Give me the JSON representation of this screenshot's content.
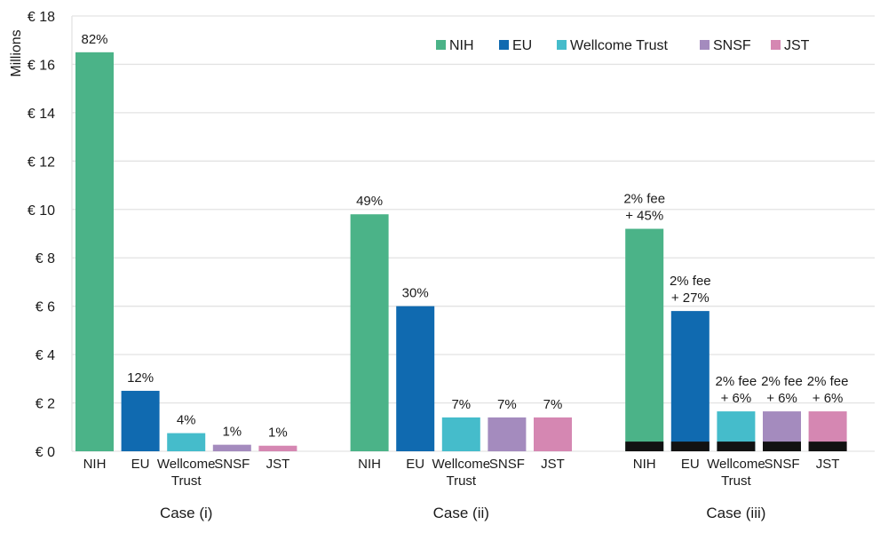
{
  "chart_data": {
    "type": "bar",
    "title": "",
    "xlabel": "",
    "ylabel": "Millions",
    "ylim": [
      0,
      18
    ],
    "yticks": [
      0,
      2,
      4,
      6,
      8,
      10,
      12,
      14,
      16,
      18
    ],
    "ytick_prefix": "€ ",
    "grid": true,
    "legend_position": "top-right",
    "legend": [
      {
        "name": "NIH",
        "color": "#4bb388"
      },
      {
        "name": "EU",
        "color": "#106ab0"
      },
      {
        "name": "Wellcome Trust",
        "color": "#45bccb"
      },
      {
        "name": "SNSF",
        "color": "#a48bbe"
      },
      {
        "name": "JST",
        "color": "#d587b2"
      }
    ],
    "fee_color": "#121212",
    "groups": [
      {
        "label": "Case (i)",
        "bars": [
          {
            "category": [
              "NIH"
            ],
            "funder": "NIH",
            "value": 16.5,
            "fee": 0,
            "label": [
              "82%"
            ]
          },
          {
            "category": [
              "EU"
            ],
            "funder": "EU",
            "value": 2.5,
            "fee": 0,
            "label": [
              "12%"
            ]
          },
          {
            "category": [
              "Wellcome",
              "Trust"
            ],
            "funder": "Wellcome Trust",
            "value": 0.75,
            "fee": 0,
            "label": [
              "4%"
            ]
          },
          {
            "category": [
              "SNSF"
            ],
            "funder": "SNSF",
            "value": 0.27,
            "fee": 0,
            "label": [
              "1%"
            ]
          },
          {
            "category": [
              "JST"
            ],
            "funder": "JST",
            "value": 0.23,
            "fee": 0,
            "label": [
              "1%"
            ]
          }
        ]
      },
      {
        "label": "Case (ii)",
        "bars": [
          {
            "category": [
              "NIH"
            ],
            "funder": "NIH",
            "value": 9.8,
            "fee": 0,
            "label": [
              "49%"
            ]
          },
          {
            "category": [
              "EU"
            ],
            "funder": "EU",
            "value": 6.0,
            "fee": 0,
            "label": [
              "30%"
            ]
          },
          {
            "category": [
              "Wellcome",
              "Trust"
            ],
            "funder": "Wellcome Trust",
            "value": 1.4,
            "fee": 0,
            "label": [
              "7%"
            ]
          },
          {
            "category": [
              "SNSF"
            ],
            "funder": "SNSF",
            "value": 1.4,
            "fee": 0,
            "label": [
              "7%"
            ]
          },
          {
            "category": [
              "JST"
            ],
            "funder": "JST",
            "value": 1.4,
            "fee": 0,
            "label": [
              "7%"
            ]
          }
        ]
      },
      {
        "label": "Case (iii)",
        "bars": [
          {
            "category": [
              "NIH"
            ],
            "funder": "NIH",
            "value": 9.2,
            "fee": 0.4,
            "label": [
              "2% fee",
              "+ 45%"
            ]
          },
          {
            "category": [
              "EU"
            ],
            "funder": "EU",
            "value": 5.8,
            "fee": 0.4,
            "label": [
              "2% fee",
              "+ 27%"
            ]
          },
          {
            "category": [
              "Wellcome",
              "Trust"
            ],
            "funder": "Wellcome Trust",
            "value": 1.65,
            "fee": 0.4,
            "label": [
              "2% fee",
              "+ 6%"
            ]
          },
          {
            "category": [
              "SNSF"
            ],
            "funder": "SNSF",
            "value": 1.65,
            "fee": 0.4,
            "label": [
              "2% fee",
              "+ 6%"
            ]
          },
          {
            "category": [
              "JST"
            ],
            "funder": "JST",
            "value": 1.65,
            "fee": 0.4,
            "label": [
              "2% fee",
              "+ 6%"
            ]
          }
        ]
      }
    ]
  }
}
